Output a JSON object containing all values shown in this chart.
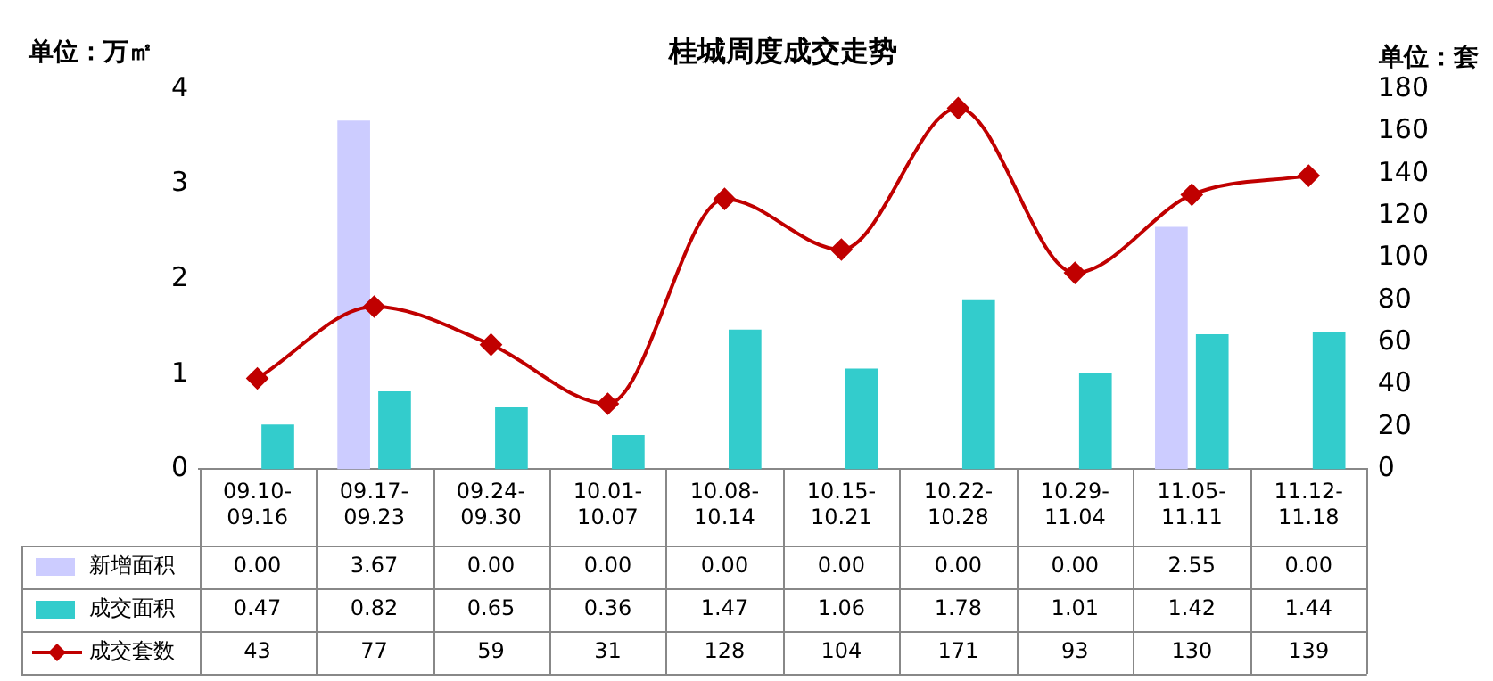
{
  "chart_data": {
    "type": "bar",
    "title": "桂城周度成交走势",
    "ylabel": "单位：万㎡",
    "y2label": "单位：套",
    "categories": [
      "09.10-09.16",
      "09.17-09.23",
      "09.24-09.30",
      "10.01-10.07",
      "10.08-10.14",
      "10.15-10.21",
      "10.22-10.28",
      "10.29-11.04",
      "11.05-11.11",
      "11.12-11.18"
    ],
    "series": [
      {
        "name": "新增面积",
        "color": "#ccccff",
        "values": [
          0,
          3.67,
          0,
          0,
          0,
          0,
          0,
          0,
          2.55,
          0
        ],
        "value_labels": [
          "0.00",
          "3.67",
          "0.00",
          "0.00",
          "0.00",
          "0.00",
          "0.00",
          "0.00",
          "2.55",
          "0.00"
        ]
      },
      {
        "name": "成交面积",
        "color": "#33cccc",
        "values": [
          0.47,
          0.82,
          0.65,
          0.36,
          1.47,
          1.06,
          1.78,
          1.01,
          1.42,
          1.44
        ],
        "value_labels": [
          "0.47",
          "0.82",
          "0.65",
          "0.36",
          "1.47",
          "1.06",
          "1.78",
          "1.01",
          "1.42",
          "1.44"
        ]
      },
      {
        "name": "成交套数",
        "type": "line",
        "axis": "y2",
        "color": "#c00000",
        "marker": "diamond",
        "values": [
          43,
          77,
          59,
          31,
          128,
          104,
          171,
          93,
          130,
          139
        ],
        "value_labels": [
          "43",
          "77",
          "59",
          "31",
          "128",
          "104",
          "171",
          "93",
          "130",
          "139"
        ]
      }
    ],
    "ylim": [
      0,
      4
    ],
    "yticks": [
      0,
      1,
      2,
      3,
      4
    ],
    "y2lim": [
      0,
      180
    ],
    "y2ticks": [
      0,
      20,
      40,
      60,
      80,
      100,
      120,
      140,
      160,
      180
    ],
    "grid": false,
    "legend": "bottom"
  }
}
